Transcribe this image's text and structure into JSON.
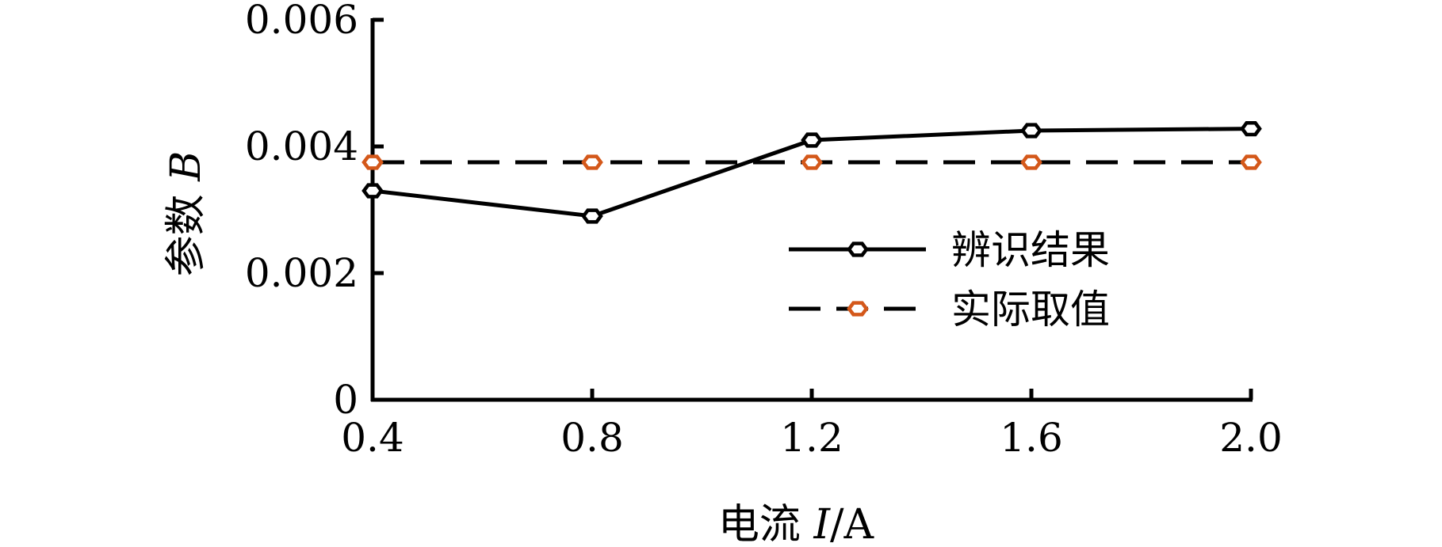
{
  "chart_data": {
    "type": "line",
    "x": [
      0.4,
      0.8,
      1.2,
      1.6,
      2.0
    ],
    "x_tick_labels": [
      "0.4",
      "0.8",
      "1.2",
      "1.6",
      "2.0"
    ],
    "y_tick_labels": [
      "0",
      "0.002",
      "0.004",
      "0.006"
    ],
    "y_ticks": [
      0,
      0.002,
      0.004,
      0.006
    ],
    "xlim": [
      0.4,
      2.0
    ],
    "ylim": [
      0,
      0.006
    ],
    "xlabel": {
      "prefix": "电流 ",
      "var": "I",
      "unit": "/A"
    },
    "ylabel": {
      "prefix": "参数 ",
      "var": "B"
    },
    "grid": false,
    "legend_position": "center-right",
    "series": [
      {
        "name": "辨识结果",
        "values": [
          0.0033,
          0.0029,
          0.0041,
          0.00425,
          0.00428
        ],
        "line_style": "solid",
        "line_color": "#000000",
        "marker": "hexagon",
        "marker_color": "#000000"
      },
      {
        "name": "实际取值",
        "values": [
          0.00375,
          0.00375,
          0.00375,
          0.00375,
          0.00375
        ],
        "line_style": "dashed",
        "line_color": "#000000",
        "marker": "hexagon",
        "marker_color": "#d4581a"
      }
    ]
  }
}
